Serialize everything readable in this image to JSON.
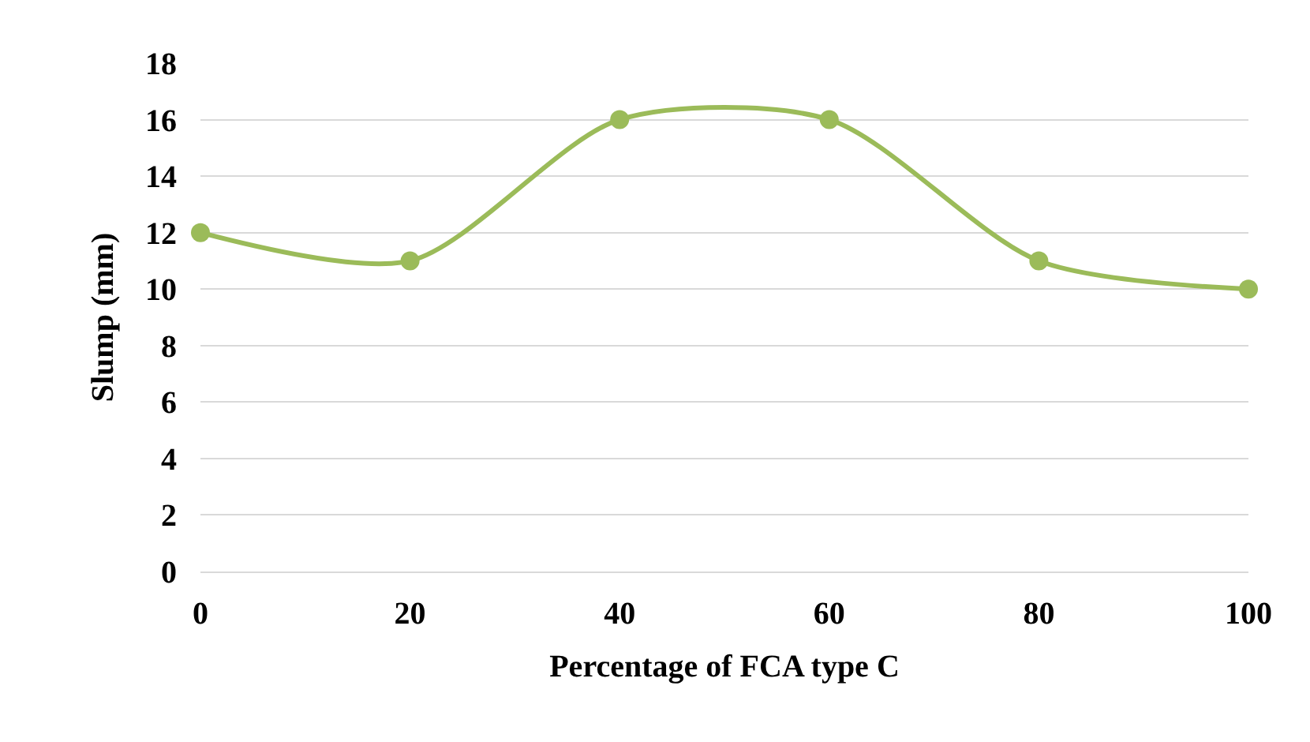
{
  "chart_data": {
    "type": "line",
    "xlabel": "Percentage of FCA type C",
    "ylabel": "Slump (mm)",
    "x": [
      0,
      20,
      40,
      60,
      80,
      100
    ],
    "series": [
      {
        "color": "#9bbb59",
        "values": [
          12,
          11,
          16,
          16,
          11,
          10
        ]
      }
    ],
    "xlim": [
      0,
      100
    ],
    "xticks": [
      0,
      20,
      40,
      60,
      80,
      100
    ],
    "ylim": [
      0,
      18
    ],
    "yticks": [
      0,
      2,
      4,
      6,
      8,
      10,
      12,
      14,
      16,
      18
    ],
    "grid": "y",
    "marker": "circle",
    "line_style": "solid"
  }
}
